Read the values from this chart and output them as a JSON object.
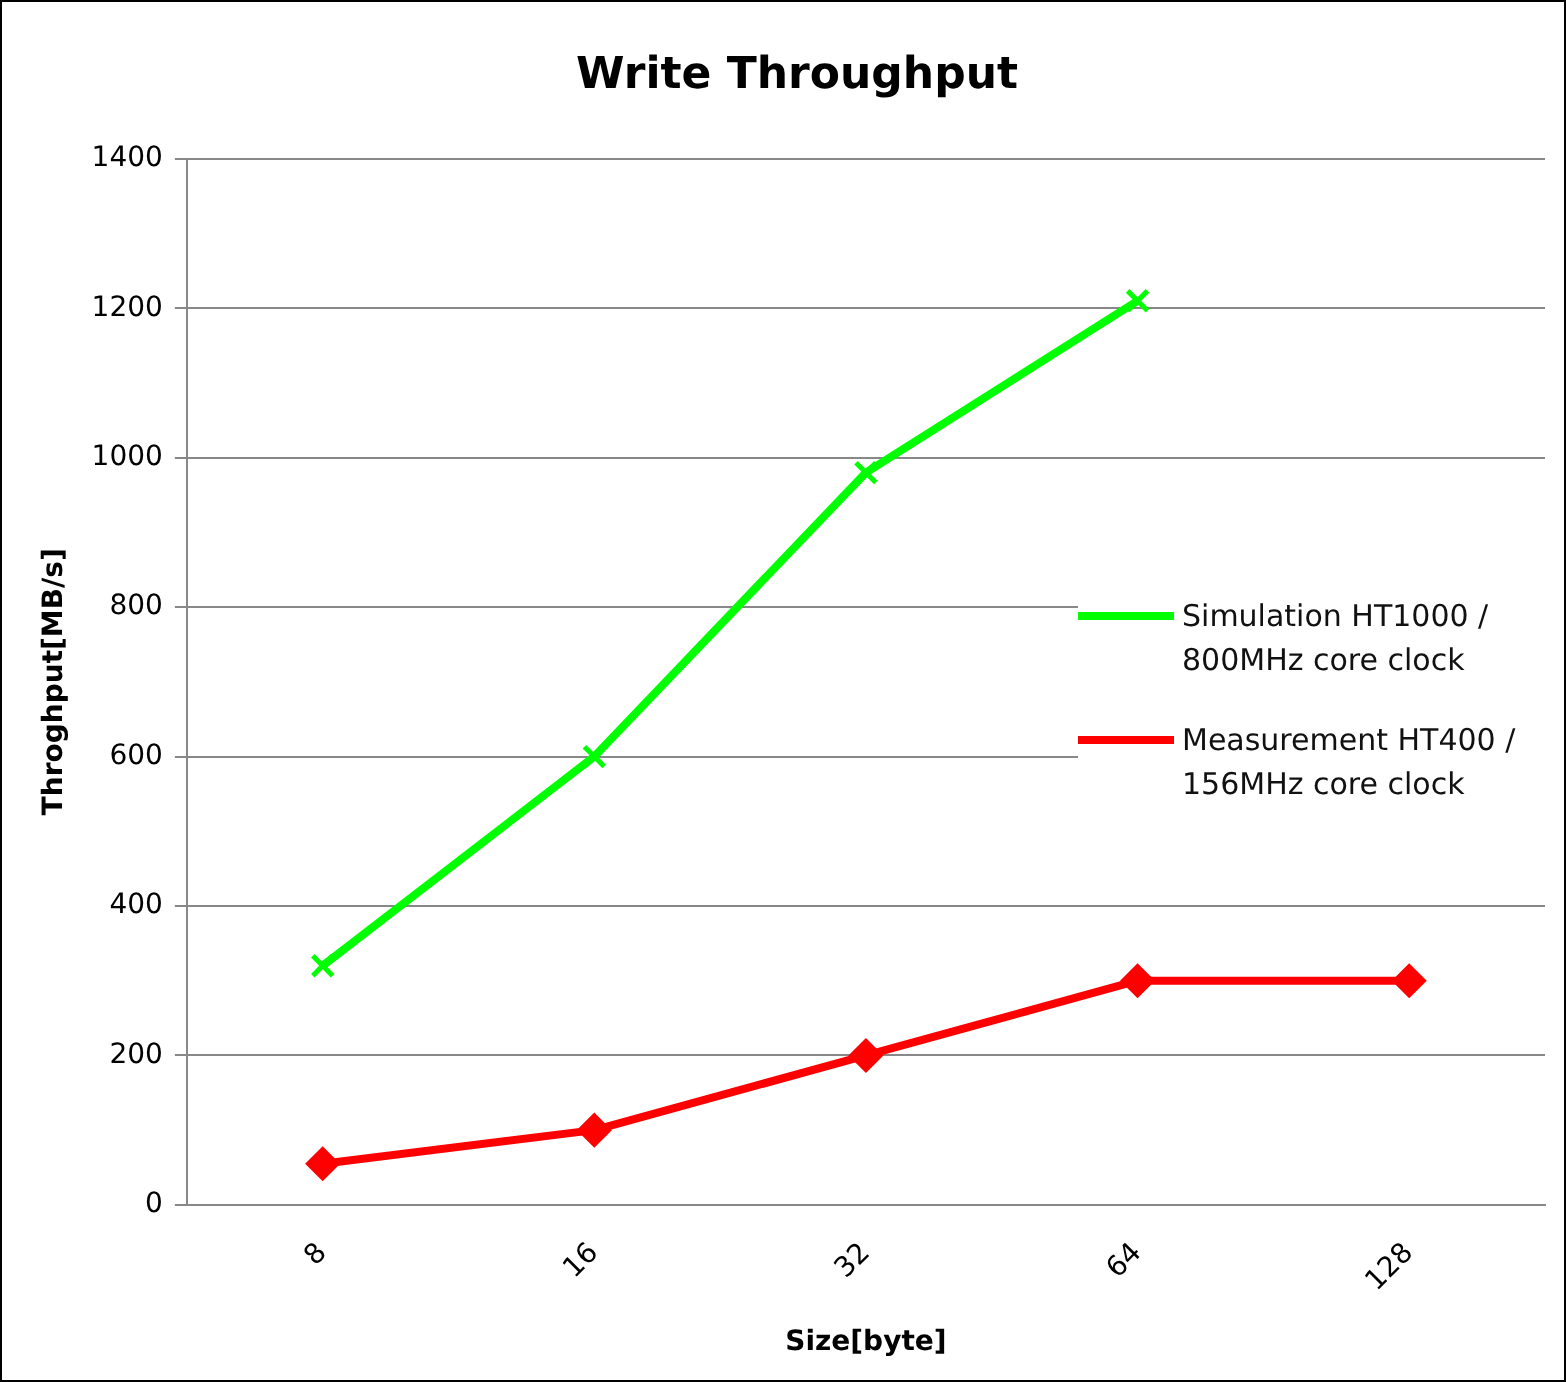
{
  "chart_data": {
    "type": "line",
    "title": "Write Throughput",
    "xlabel": "Size[byte]",
    "ylabel": "Throghput[MB/s]",
    "categories": [
      "8",
      "16",
      "32",
      "64",
      "128"
    ],
    "series": [
      {
        "name": "Simulation HT1000 / 800MHz core clock",
        "color": "#00ff00",
        "marker": "cross",
        "values": [
          320,
          600,
          980,
          1210,
          null
        ]
      },
      {
        "name": "Measurement HT400 / 156MHz core clock",
        "color": "#ff0000",
        "marker": "diamond",
        "values": [
          55,
          100,
          200,
          300,
          300
        ]
      }
    ],
    "ylim": [
      0,
      1400
    ],
    "yticks": [
      0,
      200,
      400,
      600,
      800,
      1000,
      1200,
      1400
    ],
    "grid": "y",
    "legend": "right",
    "line_style": "solid"
  }
}
